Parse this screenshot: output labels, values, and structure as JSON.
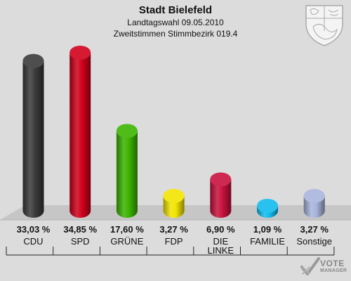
{
  "header": {
    "title": "Stadt Bielefeld",
    "subtitle": "Landtagswahl 09.05.2010",
    "subtitle2": "Zweitstimmen Stimmbezirk 019.4"
  },
  "branding": {
    "logo_line1": "VOTE",
    "logo_line2": "MANAGER",
    "crest_icon": "coat-of-arms-icon"
  },
  "chart_data": {
    "type": "bar",
    "title": "Stadt Bielefeld",
    "categories": [
      "CDU",
      "SPD",
      "GRÜNE",
      "FDP",
      "DIE LINKE",
      "FAMILIE",
      "Sonstige"
    ],
    "category_lines": [
      [
        "CDU"
      ],
      [
        "SPD"
      ],
      [
        "GRÜNE"
      ],
      [
        "FDP"
      ],
      [
        "DIE",
        "LINKE"
      ],
      [
        "FAMILIE"
      ],
      [
        "Sonstige"
      ]
    ],
    "values": [
      33.03,
      34.85,
      17.6,
      3.27,
      6.9,
      1.09,
      3.27
    ],
    "value_labels": [
      "33,03 %",
      "34,85 %",
      "17,60 %",
      "3,27 %",
      "6,90 %",
      "1,09 %",
      "3,27 %"
    ],
    "colors": [
      "#3a3a3a",
      "#d0001b",
      "#3bb400",
      "#f2e400",
      "#c8113c",
      "#11bbee",
      "#a8b4dc"
    ],
    "ylim": [
      0,
      34.85
    ],
    "grid": false,
    "legend": "none"
  }
}
